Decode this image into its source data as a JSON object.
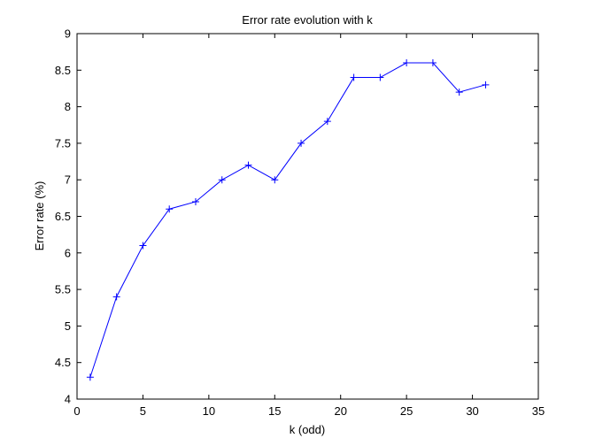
{
  "chart_data": {
    "type": "line",
    "title": "Error rate evolution with k",
    "xlabel": "k (odd)",
    "ylabel": "Error rate (%)",
    "xlim": [
      0,
      35
    ],
    "ylim": [
      4,
      9
    ],
    "xticks": [
      0,
      5,
      10,
      15,
      20,
      25,
      30,
      35
    ],
    "yticks": [
      4,
      4.5,
      5,
      5.5,
      6,
      6.5,
      7,
      7.5,
      8,
      8.5,
      9
    ],
    "xtick_labels": [
      "0",
      "5",
      "10",
      "15",
      "20",
      "25",
      "30",
      "35"
    ],
    "ytick_labels": [
      "4",
      "4.5",
      "5",
      "5.5",
      "6",
      "6.5",
      "7",
      "7.5",
      "8",
      "8.5",
      "9"
    ],
    "grid": false,
    "series": [
      {
        "color": "#0000ff",
        "marker": "plus",
        "x": [
          1,
          3,
          5,
          7,
          9,
          11,
          13,
          15,
          17,
          19,
          21,
          23,
          25,
          27,
          29,
          31
        ],
        "y": [
          4.3,
          5.4,
          6.1,
          6.6,
          6.7,
          7.0,
          7.2,
          7.0,
          7.5,
          7.8,
          8.4,
          8.4,
          8.6,
          8.6,
          8.2,
          8.3
        ]
      }
    ]
  }
}
